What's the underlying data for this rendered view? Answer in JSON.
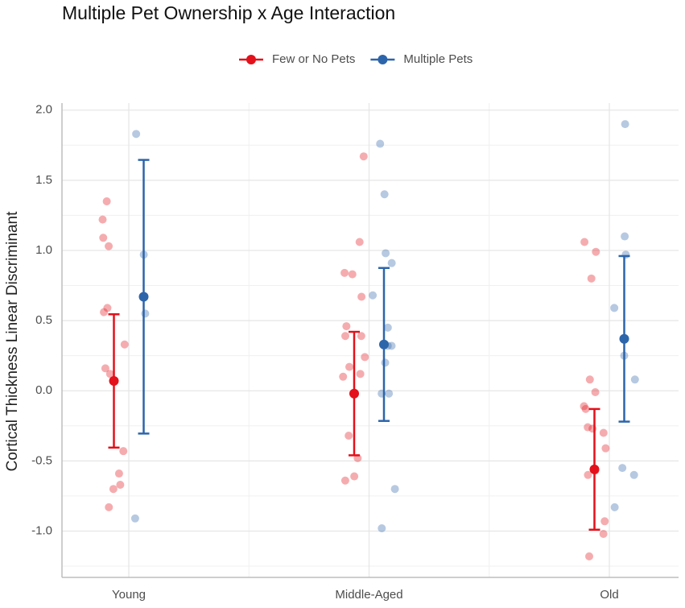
{
  "chart_data": {
    "type": "point-errorbar",
    "title": "Multiple Pet Ownership x Age Interaction",
    "y_label": "Cortical Thickness Linear Discriminant",
    "categories": [
      "Young",
      "Middle-Aged",
      "Old"
    ],
    "ylim": [
      -1.33,
      2.05
    ],
    "yticks": [
      {
        "value": 2,
        "label": "2.0"
      },
      1.5,
      {
        "value": 1,
        "label": "1.0"
      },
      0.5,
      {
        "value": 0,
        "label": "0.0"
      },
      -0.5,
      {
        "value": -1,
        "label": "-1.0"
      }
    ],
    "grid": true,
    "legend": "top",
    "series": [
      {
        "name": "Few or No Pets",
        "color": "#e3111b",
        "values": [
          0.07,
          -0.02,
          -0.56
        ],
        "errors": [
          0.475,
          0.44,
          0.43
        ],
        "points": [
          [
            1.22,
            1.35,
            1.09,
            1.03,
            0.59,
            0.56,
            0.33,
            0.16,
            0.12,
            -0.43,
            -0.59,
            -0.67,
            -0.7,
            -0.83
          ],
          [
            1.67,
            1.06,
            0.84,
            0.83,
            0.67,
            0.46,
            0.39,
            0.39,
            0.24,
            0.17,
            0.12,
            0.1,
            -0.32,
            -0.48,
            -0.61,
            -0.64
          ],
          [
            1.06,
            0.99,
            0.8,
            0.08,
            -0.01,
            -0.13,
            -0.11,
            -0.3,
            -0.26,
            -0.27,
            -0.41,
            -0.6,
            -0.57,
            -0.93,
            -1.02,
            -1.18
          ]
        ]
      },
      {
        "name": "Multiple Pets",
        "color": "#2d65aa",
        "values": [
          0.67,
          0.33,
          0.37
        ],
        "errors": [
          0.975,
          0.545,
          0.59
        ],
        "points": [
          [
            1.83,
            0.97,
            0.55,
            -0.91
          ],
          [
            1.76,
            1.4,
            0.98,
            0.91,
            0.68,
            0.45,
            0.32,
            0.32,
            0.2,
            -0.02,
            -0.02,
            -0.7,
            -0.98
          ],
          [
            1.9,
            1.1,
            0.97,
            0.59,
            0.25,
            0.08,
            -0.55,
            -0.6,
            -0.83
          ]
        ]
      }
    ]
  }
}
